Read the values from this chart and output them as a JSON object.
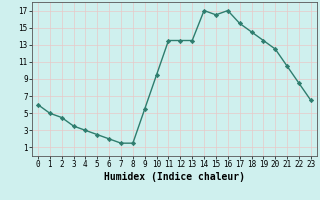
{
  "x": [
    0,
    1,
    2,
    3,
    4,
    5,
    6,
    7,
    8,
    9,
    10,
    11,
    12,
    13,
    14,
    15,
    16,
    17,
    18,
    19,
    20,
    21,
    22,
    23
  ],
  "y": [
    6,
    5,
    4.5,
    3.5,
    3,
    2.5,
    2,
    1.5,
    1.5,
    5.5,
    9.5,
    13.5,
    13.5,
    13.5,
    17,
    16.5,
    17,
    15.5,
    14.5,
    13.5,
    12.5,
    10.5,
    8.5,
    6.5
  ],
  "line_color": "#2e7d6e",
  "marker": "D",
  "marker_size": 2.2,
  "bg_color": "#cff0ee",
  "grid_color": "#e8c8c8",
  "xlabel": "Humidex (Indice chaleur)",
  "xlabel_fontsize": 7,
  "xlim": [
    -0.5,
    23.5
  ],
  "ylim": [
    0,
    18
  ],
  "yticks": [
    1,
    3,
    5,
    7,
    9,
    11,
    13,
    15,
    17
  ],
  "xticks": [
    0,
    1,
    2,
    3,
    4,
    5,
    6,
    7,
    8,
    9,
    10,
    11,
    12,
    13,
    14,
    15,
    16,
    17,
    18,
    19,
    20,
    21,
    22,
    23
  ],
  "tick_fontsize": 5.5,
  "linewidth": 1.0
}
